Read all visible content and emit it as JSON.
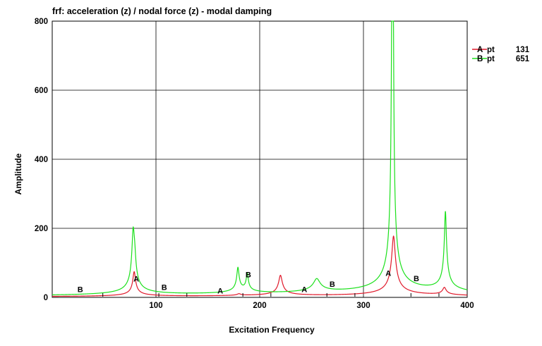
{
  "chart_data": {
    "type": "line",
    "title": "frf: acceleration (z) / nodal force (z) - modal damping",
    "xlabel": "Excitation Frequency",
    "ylabel": "Amplitude",
    "xlim": [
      0,
      400
    ],
    "ylim": [
      0,
      800
    ],
    "xticks": [
      "100",
      "200",
      "300",
      "400"
    ],
    "yticks": [
      "0",
      "200",
      "400",
      "600",
      "800"
    ],
    "grid": true,
    "legend_position": "right",
    "series": [
      {
        "name": "pt",
        "marker": "A",
        "id_value": "131",
        "color": "#e0182a",
        "peaks": [
          {
            "f": 79,
            "a": 72,
            "w": 1.2
          },
          {
            "f": 180,
            "a": 5,
            "w": 1.5
          },
          {
            "f": 220,
            "a": 60,
            "w": 1.6
          },
          {
            "f": 329,
            "a": 175,
            "w": 1.6
          },
          {
            "f": 378,
            "a": 22,
            "w": 1.5
          }
        ],
        "marker_x": [
          81,
          162,
          243,
          324
        ]
      },
      {
        "name": "pt",
        "marker": "B",
        "id_value": "651",
        "color": "#1be01b",
        "peaks": [
          {
            "f": 78,
            "a": 164,
            "w": 1.1
          },
          {
            "f": 79.5,
            "a": 60,
            "w": 1.0
          },
          {
            "f": 179,
            "a": 72,
            "w": 1.0
          },
          {
            "f": 188,
            "a": 52,
            "w": 0.9
          },
          {
            "f": 255,
            "a": 40,
            "w": 3.0
          },
          {
            "f": 327.5,
            "a": 745,
            "w": 0.55
          },
          {
            "f": 328.7,
            "a": 620,
            "w": 0.45
          },
          {
            "f": 379,
            "a": 233,
            "w": 0.9
          }
        ],
        "marker_x": [
          27,
          108,
          189,
          270,
          351
        ]
      }
    ]
  }
}
